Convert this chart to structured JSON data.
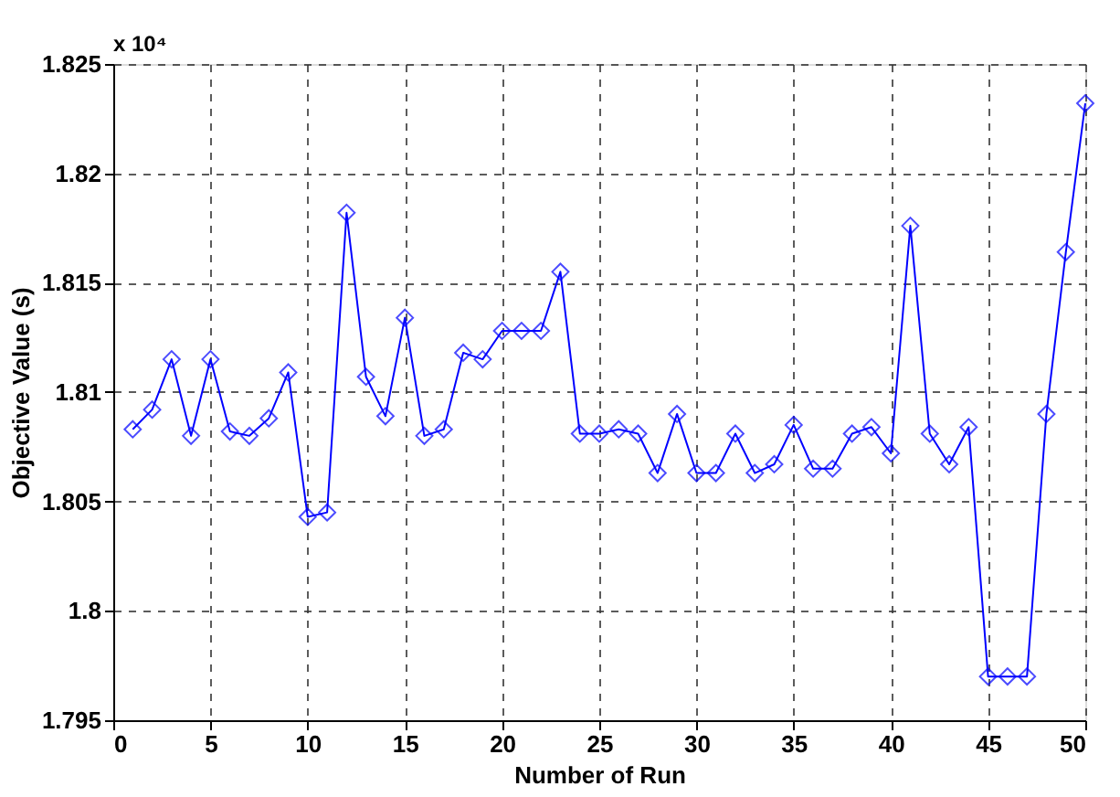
{
  "chart_data": {
    "type": "line",
    "xlabel": "Number of Run",
    "ylabel": "Objective Value (s)",
    "annotations": [
      "x 10⁴"
    ],
    "x": [
      1,
      2,
      3,
      4,
      5,
      6,
      7,
      8,
      9,
      10,
      11,
      12,
      13,
      14,
      15,
      16,
      17,
      18,
      19,
      20,
      21,
      22,
      23,
      24,
      25,
      26,
      27,
      28,
      29,
      30,
      31,
      32,
      33,
      34,
      35,
      36,
      37,
      38,
      39,
      40,
      41,
      42,
      43,
      44,
      45,
      46,
      47,
      48,
      49,
      50
    ],
    "series": [
      {
        "color": "#0000ff",
        "values": [
          1.8083,
          1.8092,
          1.8115,
          1.808,
          1.8115,
          1.8082,
          1.808,
          1.8088,
          1.8109,
          1.8043,
          1.8045,
          1.8182,
          1.8107,
          1.8089,
          1.8134,
          1.808,
          1.8083,
          1.8118,
          1.8115,
          1.8128,
          1.8128,
          1.8128,
          1.8155,
          1.8081,
          1.8081,
          1.8083,
          1.8081,
          1.8063,
          1.809,
          1.8063,
          1.8063,
          1.8081,
          1.8063,
          1.8067,
          1.8085,
          1.8065,
          1.8065,
          1.8081,
          1.8084,
          1.8072,
          1.8176,
          1.8081,
          1.8067,
          1.8084,
          1.797,
          1.797,
          1.797,
          1.809,
          1.8164,
          1.8232
        ]
      }
    ],
    "xlim": [
      0,
      50
    ],
    "xticks": [
      0,
      5,
      10,
      15,
      20,
      25,
      30,
      35,
      40,
      45,
      50
    ],
    "ylim": [
      1.795,
      1.825
    ],
    "yticks": [
      1.795,
      1.8,
      1.805,
      1.81,
      1.815,
      1.82,
      1.825
    ],
    "grid": true,
    "marker": "diamond",
    "line_style": "solid",
    "legend": false
  }
}
